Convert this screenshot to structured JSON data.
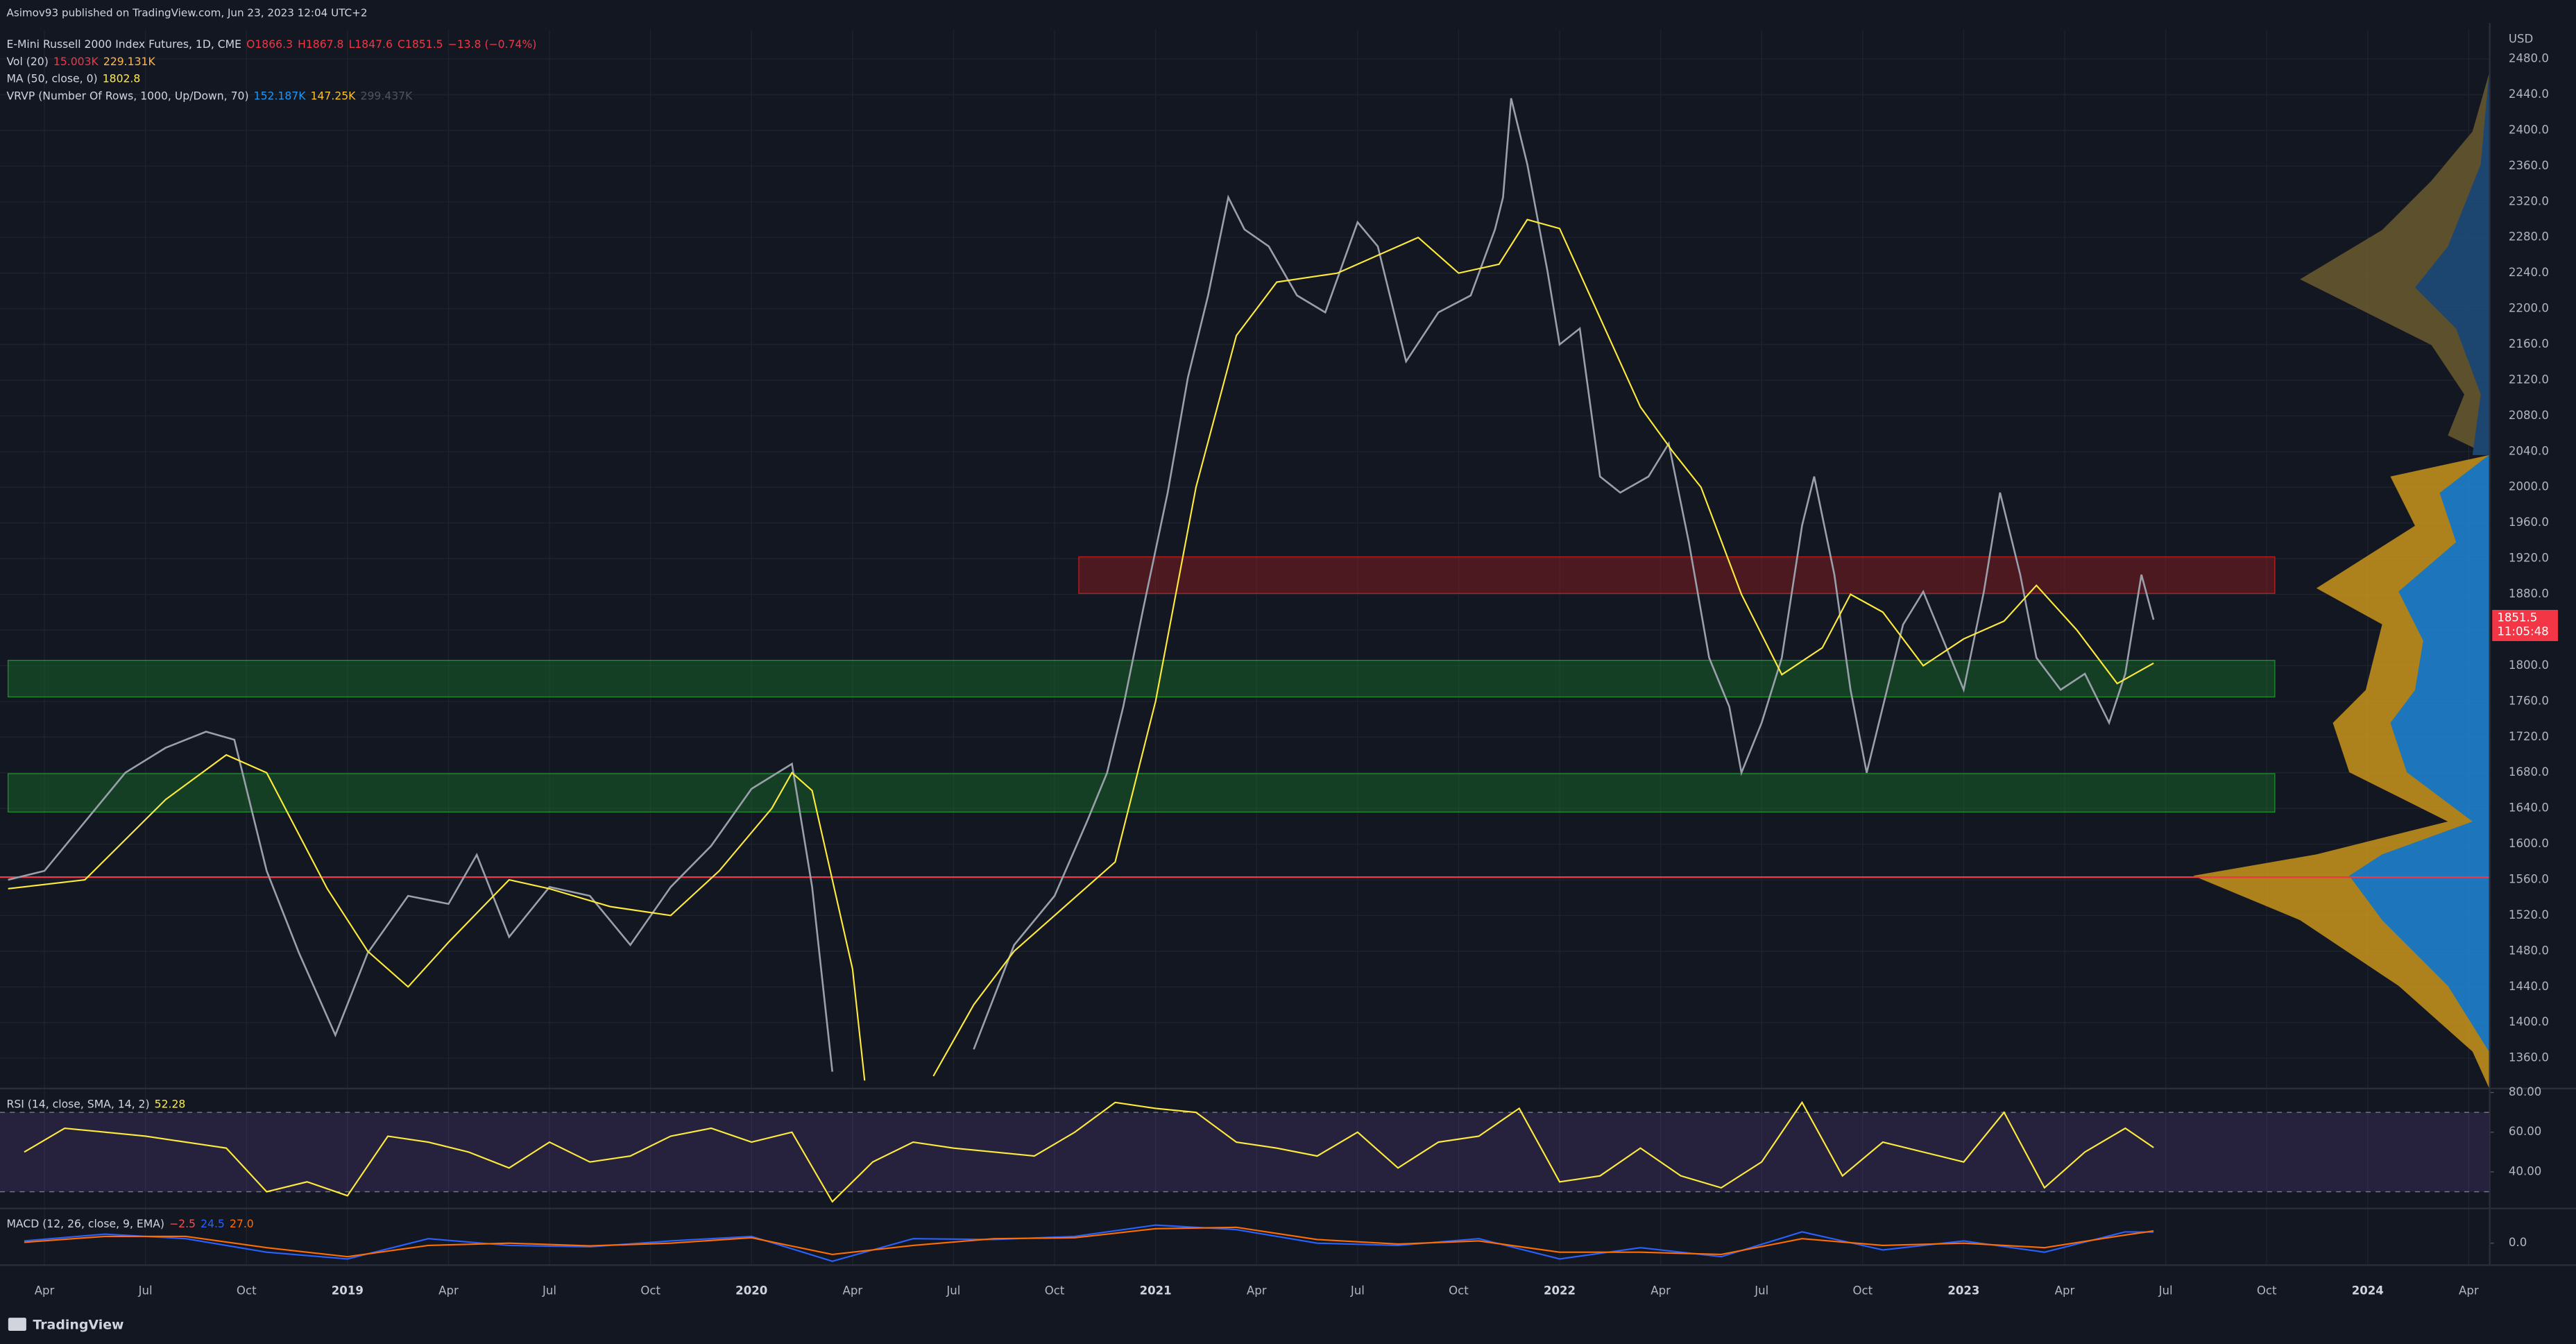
{
  "header": {
    "publisher": "Asimov93 published on TradingView.com, Jun 23, 2023 12:04 UTC+2",
    "brand": "TradingView"
  },
  "chart_data": [
    {
      "type": "line",
      "title": "E-Mini Russell 2000 Index Futures, 1D, CME",
      "ohlc_labels": [
        "O1866.3",
        "H1867.8",
        "L1847.6",
        "C1851.5",
        "−13.8 (−0.74%)"
      ],
      "ohlc_color": "#f23645",
      "indicators": [
        {
          "name": "Vol (20)",
          "values": [
            "15.003K",
            "229.131K"
          ],
          "value_colors": [
            "#f23645",
            "#ffb74d"
          ]
        },
        {
          "name": "MA (50, close, 0)",
          "values": [
            "1802.8"
          ],
          "value_colors": [
            "#ffeb3b"
          ]
        },
        {
          "name": "VRVP (Number Of Rows, 1000, Up/Down, 70)",
          "values": [
            "152.187K",
            "147.25K",
            "299.437K"
          ],
          "value_colors": [
            "#2196f3",
            "#fbc02d",
            "#50535e"
          ]
        }
      ],
      "currency": "USD",
      "last_price_label": "1851.5",
      "countdown": "11:05:48",
      "xlim": [
        2018.14,
        2024.3
      ],
      "ylim": [
        1327,
        2513
      ],
      "grid": true,
      "xticks": [
        {
          "value": 2018.25,
          "label": "Apr"
        },
        {
          "value": 2018.5,
          "label": "Jul"
        },
        {
          "value": 2018.75,
          "label": "Oct"
        },
        {
          "value": 2019,
          "label": "2019"
        },
        {
          "value": 2019.25,
          "label": "Apr"
        },
        {
          "value": 2019.5,
          "label": "Jul"
        },
        {
          "value": 2019.75,
          "label": "Oct"
        },
        {
          "value": 2020,
          "label": "2020"
        },
        {
          "value": 2020.25,
          "label": "Apr"
        },
        {
          "value": 2020.5,
          "label": "Jul"
        },
        {
          "value": 2020.75,
          "label": "Oct"
        },
        {
          "value": 2021,
          "label": "2021"
        },
        {
          "value": 2021.25,
          "label": "Apr"
        },
        {
          "value": 2021.5,
          "label": "Jul"
        },
        {
          "value": 2021.75,
          "label": "Oct"
        },
        {
          "value": 2022,
          "label": "2022"
        },
        {
          "value": 2022.25,
          "label": "Apr"
        },
        {
          "value": 2022.5,
          "label": "Jul"
        },
        {
          "value": 2022.75,
          "label": "Oct"
        },
        {
          "value": 2023,
          "label": "2023"
        },
        {
          "value": 2023.25,
          "label": "Apr"
        },
        {
          "value": 2023.5,
          "label": "Jul"
        },
        {
          "value": 2023.75,
          "label": "Oct"
        },
        {
          "value": 2024,
          "label": "2024"
        },
        {
          "value": 2024.25,
          "label": "Apr"
        }
      ],
      "yticks": [
        {
          "value": 1360,
          "label": "1360.0"
        },
        {
          "value": 1400,
          "label": "1400.0"
        },
        {
          "value": 1440,
          "label": "1440.0"
        },
        {
          "value": 1480,
          "label": "1480.0"
        },
        {
          "value": 1520,
          "label": "1520.0"
        },
        {
          "value": 1560,
          "label": "1560.0"
        },
        {
          "value": 1600,
          "label": "1600.0"
        },
        {
          "value": 1640,
          "label": "1640.0"
        },
        {
          "value": 1680,
          "label": "1680.0"
        },
        {
          "value": 1720,
          "label": "1720.0"
        },
        {
          "value": 1760,
          "label": "1760.0"
        },
        {
          "value": 1800,
          "label": "1800.0"
        },
        {
          "value": 1840,
          "label": "1840.0"
        },
        {
          "value": 1880,
          "label": "1880.0"
        },
        {
          "value": 1920,
          "label": "1920.0"
        },
        {
          "value": 1960,
          "label": "1960.0"
        },
        {
          "value": 2000,
          "label": "2000.0"
        },
        {
          "value": 2040,
          "label": "2040.0"
        },
        {
          "value": 2080,
          "label": "2080.0"
        },
        {
          "value": 2120,
          "label": "2120.0"
        },
        {
          "value": 2160,
          "label": "2160.0"
        },
        {
          "value": 2200,
          "label": "2200.0"
        },
        {
          "value": 2240,
          "label": "2240.0"
        },
        {
          "value": 2280,
          "label": "2280.0"
        },
        {
          "value": 2320,
          "label": "2320.0"
        },
        {
          "value": 2360,
          "label": "2360.0"
        },
        {
          "value": 2400,
          "label": "2400.0"
        },
        {
          "value": 2440,
          "label": "2440.0"
        },
        {
          "value": 2480,
          "label": "2480.0"
        }
      ],
      "zones": [
        {
          "from": 2020.81,
          "to": 2023.77,
          "low": 1881,
          "high": 1922,
          "color": "#b71c1c"
        },
        {
          "from": 2018.16,
          "to": 2023.77,
          "low": 1765,
          "high": 1806,
          "color": "#1b8a2a"
        },
        {
          "from": 2018.16,
          "to": 2023.77,
          "low": 1636,
          "high": 1679,
          "color": "#1b8a2a"
        }
      ],
      "hline": {
        "value": 1563,
        "color": "#f23645"
      },
      "series": [
        {
          "color": "#9aa0ab",
          "x": [
            2018.16,
            2018.25,
            2018.35,
            2018.45,
            2018.55,
            2018.65,
            2018.72,
            2018.8,
            2018.88,
            2018.97,
            2019.05,
            2019.15,
            2019.25,
            2019.32,
            2019.4,
            2019.5,
            2019.6,
            2019.7,
            2019.8,
            2019.9,
            2020,
            2020.1,
            2020.15,
            2020.2,
            2020.3,
            2020.55,
            2020.65,
            2020.75,
            2020.83,
            2020.88,
            2020.92,
            2020.97,
            2021.03,
            2021.08,
            2021.13,
            2021.18,
            2021.22,
            2021.28,
            2021.35,
            2021.42,
            2021.5,
            2021.55,
            2021.62,
            2021.7,
            2021.78,
            2021.84,
            2021.86,
            2021.88,
            2021.92,
            2021.97,
            2022,
            2022.05,
            2022.1,
            2022.15,
            2022.22,
            2022.27,
            2022.32,
            2022.37,
            2022.42,
            2022.45,
            2022.5,
            2022.55,
            2022.6,
            2022.63,
            2022.68,
            2022.72,
            2022.76,
            2022.8,
            2022.85,
            2022.9,
            2022.95,
            2023,
            2023.05,
            2023.09,
            2023.14,
            2023.18,
            2023.24,
            2023.3,
            2023.36,
            2023.4,
            2023.44,
            2023.47
          ],
          "values": [
            1560,
            1570,
            1625,
            1680,
            1708,
            1726,
            1717,
            1570,
            1478,
            1386,
            1478,
            1542,
            1533,
            1588,
            1496,
            1552,
            1542,
            1487,
            1552,
            1598,
            1662,
            1690,
            1552,
            1345,
            null,
            1370,
            1487,
            1542,
            1625,
            1680,
            1754,
            1865,
            1994,
            2123,
            2215,
            2325,
            2289,
            2270,
            2215,
            2196,
            2297,
            2270,
            2141,
            2196,
            2215,
            2289,
            2325,
            2436,
            2362,
            2242,
            2160,
            2178,
            2012,
            1994,
            2012,
            2049,
            1938,
            1809,
            1754,
            1680,
            1736,
            1809,
            1957,
            2012,
            1902,
            1773,
            1680,
            1754,
            1846,
            1883,
            1828,
            1773,
            1883,
            1994,
            1902,
            1809,
            1773,
            1791,
            1736,
            1791,
            1902,
            1851.5
          ]
        },
        {
          "name": "MA (50, close, 0)",
          "color": "#ffeb3b",
          "x": [
            2018.16,
            2018.35,
            2018.55,
            2018.7,
            2018.8,
            2018.95,
            2019.05,
            2019.15,
            2019.25,
            2019.4,
            2019.5,
            2019.65,
            2019.8,
            2019.92,
            2020.05,
            2020.1,
            2020.15,
            2020.25,
            2020.28,
            2020.35,
            2020.45,
            2020.55,
            2020.65,
            2020.8,
            2020.9,
            2021,
            2021.1,
            2021.2,
            2021.3,
            2021.45,
            2021.55,
            2021.65,
            2021.75,
            2021.85,
            2021.92,
            2022,
            2022.1,
            2022.2,
            2022.28,
            2022.35,
            2022.45,
            2022.55,
            2022.65,
            2022.72,
            2022.8,
            2022.9,
            2023,
            2023.1,
            2023.18,
            2023.28,
            2023.38,
            2023.47
          ],
          "values": [
            1550,
            1560,
            1650,
            1700,
            1680,
            1550,
            1480,
            1440,
            1490,
            1560,
            1550,
            1530,
            1520,
            1570,
            1640,
            1680,
            1660,
            1460,
            1335,
            null,
            1340,
            1420,
            1480,
            1540,
            1580,
            1760,
            2000,
            2170,
            2230,
            2240,
            2260,
            2280,
            2240,
            2250,
            2300,
            2290,
            2190,
            2090,
            2040,
            2000,
            1880,
            1790,
            1820,
            1880,
            1860,
            1800,
            1830,
            1850,
            1890,
            1840,
            1780,
            1802.8
          ]
        }
      ]
    },
    {
      "type": "line",
      "title": "RSI (14, close, SMA, 14, 2)",
      "legend_values": [
        "52.28"
      ],
      "legend_colors": [
        "#ffeb3b"
      ],
      "xlim": [
        2018.14,
        2024.3
      ],
      "ylim": [
        22,
        81.6
      ],
      "yticks": [
        {
          "value": 80,
          "label": "80.00"
        },
        {
          "value": 60,
          "label": "60.00"
        },
        {
          "value": 40,
          "label": "40.00"
        }
      ],
      "bands": {
        "upper": 70,
        "lower": 30,
        "color": "#7e57c2"
      },
      "series": [
        {
          "color": "#ffeb3b",
          "x": [
            2018.2,
            2018.3,
            2018.4,
            2018.5,
            2018.6,
            2018.7,
            2018.8,
            2018.9,
            2019,
            2019.1,
            2019.2,
            2019.3,
            2019.4,
            2019.5,
            2019.6,
            2019.7,
            2019.8,
            2019.9,
            2020,
            2020.1,
            2020.2,
            2020.3,
            2020.4,
            2020.5,
            2020.6,
            2020.7,
            2020.8,
            2020.9,
            2021,
            2021.1,
            2021.2,
            2021.3,
            2021.4,
            2021.5,
            2021.6,
            2021.7,
            2021.8,
            2021.9,
            2022,
            2022.1,
            2022.2,
            2022.3,
            2022.4,
            2022.5,
            2022.6,
            2022.7,
            2022.8,
            2022.9,
            2023,
            2023.1,
            2023.2,
            2023.3,
            2023.4,
            2023.47
          ],
          "values": [
            50,
            62,
            60,
            58,
            55,
            52,
            30,
            35,
            28,
            58,
            55,
            50,
            42,
            55,
            45,
            48,
            58,
            62,
            55,
            60,
            25,
            45,
            55,
            52,
            50,
            48,
            60,
            75,
            72,
            70,
            55,
            52,
            48,
            60,
            42,
            55,
            58,
            72,
            35,
            38,
            52,
            38,
            32,
            45,
            75,
            38,
            55,
            50,
            45,
            70,
            32,
            50,
            62,
            52.28
          ]
        }
      ]
    },
    {
      "type": "line",
      "title": "MACD (12, 26, close, 9, EMA)",
      "legend_values": [
        "−2.5",
        "24.5",
        "27.0"
      ],
      "legend_colors": [
        "#ef5350",
        "#2962ff",
        "#ff6d00"
      ],
      "xlim": [
        2018.14,
        2024.3
      ],
      "ylim": [
        -45,
        75
      ],
      "yticks": [
        {
          "value": 0,
          "label": "0.0"
        }
      ],
      "series": [
        {
          "color": "#2962ff",
          "x": [
            2018.2,
            2018.4,
            2018.6,
            2018.8,
            2019,
            2019.2,
            2019.4,
            2019.6,
            2019.8,
            2020,
            2020.2,
            2020.4,
            2020.6,
            2020.8,
            2021,
            2021.2,
            2021.4,
            2021.6,
            2021.8,
            2022,
            2022.2,
            2022.4,
            2022.6,
            2022.8,
            2023,
            2023.2,
            2023.4,
            2023.47
          ],
          "values": [
            5,
            20,
            10,
            -20,
            -35,
            10,
            -5,
            -8,
            5,
            15,
            -40,
            10,
            8,
            15,
            40,
            30,
            0,
            -5,
            10,
            -35,
            -10,
            -30,
            25,
            -15,
            5,
            -20,
            25,
            24.5
          ]
        },
        {
          "color": "#ff6d00",
          "x": [
            2018.2,
            2018.4,
            2018.6,
            2018.8,
            2019,
            2019.2,
            2019.4,
            2019.6,
            2019.8,
            2020,
            2020.2,
            2020.4,
            2020.6,
            2020.8,
            2021,
            2021.2,
            2021.4,
            2021.6,
            2021.8,
            2022,
            2022.2,
            2022.4,
            2022.6,
            2022.8,
            2023,
            2023.2,
            2023.4,
            2023.47
          ],
          "values": [
            2,
            15,
            15,
            -10,
            -30,
            -5,
            0,
            -6,
            0,
            12,
            -25,
            -5,
            10,
            12,
            32,
            35,
            8,
            -2,
            5,
            -20,
            -20,
            -25,
            10,
            -5,
            0,
            -10,
            18,
            27.0
          ]
        }
      ]
    }
  ]
}
